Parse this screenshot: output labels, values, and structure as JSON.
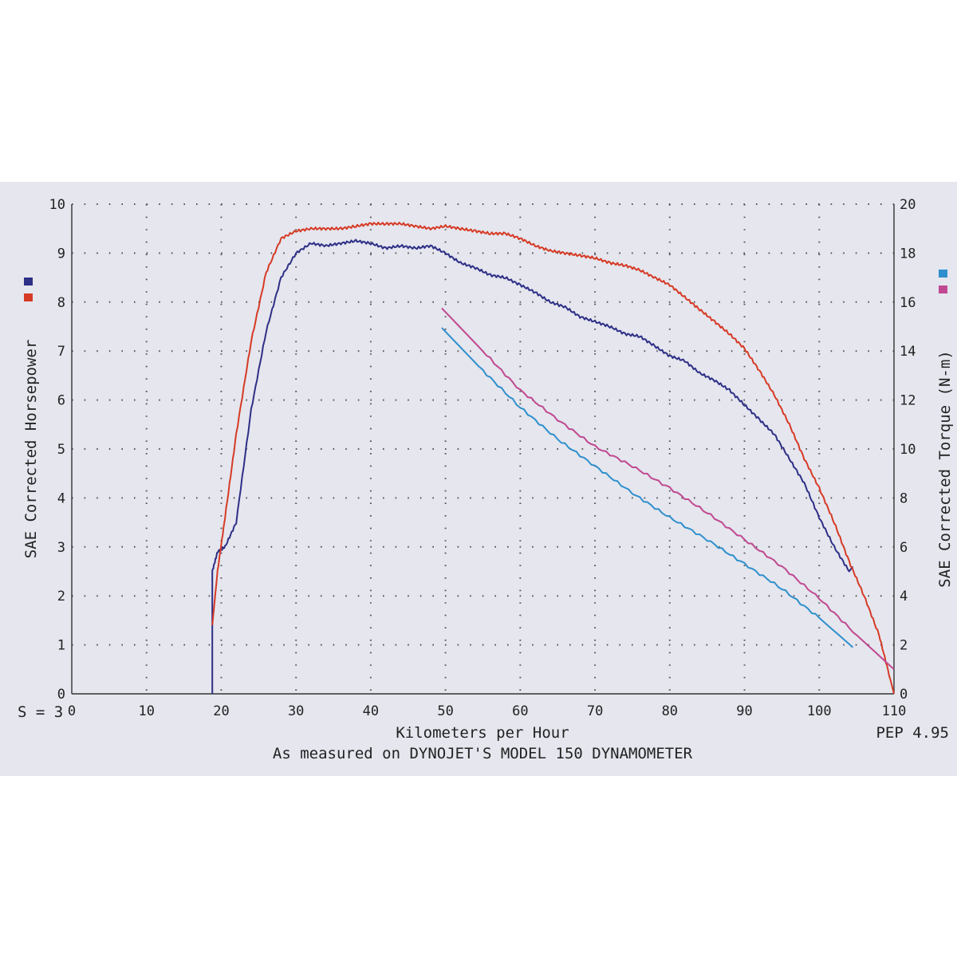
{
  "chart_data": {
    "type": "line",
    "xlabel": "Kilometers per Hour",
    "ylabel_left": "SAE Corrected Horsepower",
    "ylabel_right": "SAE Corrected Torque (N-m)",
    "caption": "As measured on DYNOJET'S MODEL 150 DYNAMOMETER",
    "corner_left": "S = 3",
    "corner_right": "PEP 4.95",
    "xlim": [
      0,
      110
    ],
    "ylim_left": [
      0,
      10
    ],
    "ylim_right": [
      0,
      20
    ],
    "x_ticks": [
      "0",
      "10",
      "20",
      "30",
      "40",
      "50",
      "60",
      "70",
      "80",
      "90",
      "100",
      "110"
    ],
    "y_ticks_left": [
      "0",
      "1",
      "2",
      "3",
      "4",
      "5",
      "6",
      "7",
      "8",
      "9",
      "10"
    ],
    "y_ticks_right": [
      "0",
      "2",
      "4",
      "6",
      "8",
      "10",
      "12",
      "14",
      "16",
      "18",
      "20"
    ],
    "grid": true,
    "legend": "left and right swatches",
    "colors": {
      "hp_navy": "#2e2f86",
      "hp_red": "#d63a25",
      "tq_blue": "#2f8fcc",
      "tq_magenta": "#c04890",
      "axis": "#333333",
      "paper": "#e5e6ee"
    },
    "series": [
      {
        "axis": "left",
        "color": "#2e2f86",
        "x": [
          18.8,
          18.8,
          19.5,
          20.5,
          22,
          24,
          26,
          28,
          30,
          32,
          34,
          36,
          38,
          40,
          42,
          44,
          46,
          48,
          50,
          52,
          54,
          56,
          58,
          60,
          62,
          64,
          66,
          68,
          70,
          72,
          74,
          76,
          78,
          80,
          82,
          84,
          86,
          88,
          90,
          92,
          94,
          96,
          98,
          100,
          102,
          104,
          104.5
        ],
        "y": [
          0,
          2.5,
          2.9,
          3.0,
          3.5,
          5.8,
          7.4,
          8.5,
          9.0,
          9.2,
          9.15,
          9.2,
          9.25,
          9.2,
          9.1,
          9.15,
          9.1,
          9.15,
          9.0,
          8.8,
          8.7,
          8.55,
          8.5,
          8.35,
          8.2,
          8.0,
          7.9,
          7.7,
          7.6,
          7.5,
          7.35,
          7.3,
          7.1,
          6.9,
          6.8,
          6.55,
          6.4,
          6.2,
          5.9,
          5.6,
          5.3,
          4.8,
          4.3,
          3.6,
          3.0,
          2.5,
          2.6
        ]
      },
      {
        "axis": "left",
        "color": "#d63a25",
        "x": [
          18.8,
          19.5,
          20.5,
          22,
          24,
          26,
          28,
          30,
          32,
          34,
          36,
          38,
          40,
          42,
          44,
          46,
          48,
          50,
          52,
          54,
          56,
          58,
          60,
          62,
          64,
          66,
          68,
          70,
          72,
          74,
          76,
          78,
          80,
          82,
          84,
          86,
          88,
          90,
          92,
          94,
          96,
          98,
          100,
          102,
          104,
          106,
          108,
          109.5,
          110
        ],
        "y": [
          1.4,
          2.5,
          3.6,
          5.3,
          7.2,
          8.6,
          9.3,
          9.45,
          9.5,
          9.5,
          9.5,
          9.55,
          9.6,
          9.6,
          9.6,
          9.55,
          9.5,
          9.55,
          9.5,
          9.45,
          9.4,
          9.4,
          9.3,
          9.15,
          9.05,
          9.0,
          8.95,
          8.9,
          8.8,
          8.75,
          8.65,
          8.5,
          8.35,
          8.1,
          7.85,
          7.6,
          7.35,
          7.05,
          6.6,
          6.1,
          5.5,
          4.8,
          4.2,
          3.5,
          2.7,
          2.0,
          1.2,
          0.3,
          0.0
        ]
      },
      {
        "axis": "right",
        "color": "#2f8fcc",
        "x": [
          49.5,
          55,
          60,
          65,
          70,
          75,
          80,
          85,
          90,
          95,
          100,
          104.5
        ],
        "y": [
          14.95,
          13.2,
          11.7,
          10.4,
          9.3,
          8.2,
          7.2,
          6.3,
          5.3,
          4.3,
          3.1,
          1.9
        ]
      },
      {
        "axis": "right",
        "color": "#c04890",
        "x": [
          49.5,
          55,
          60,
          65,
          70,
          75,
          80,
          85,
          90,
          95,
          100,
          105,
          110
        ],
        "y": [
          15.75,
          14.0,
          12.4,
          11.2,
          10.1,
          9.3,
          8.4,
          7.4,
          6.3,
          5.2,
          3.9,
          2.4,
          1.0
        ]
      }
    ]
  }
}
